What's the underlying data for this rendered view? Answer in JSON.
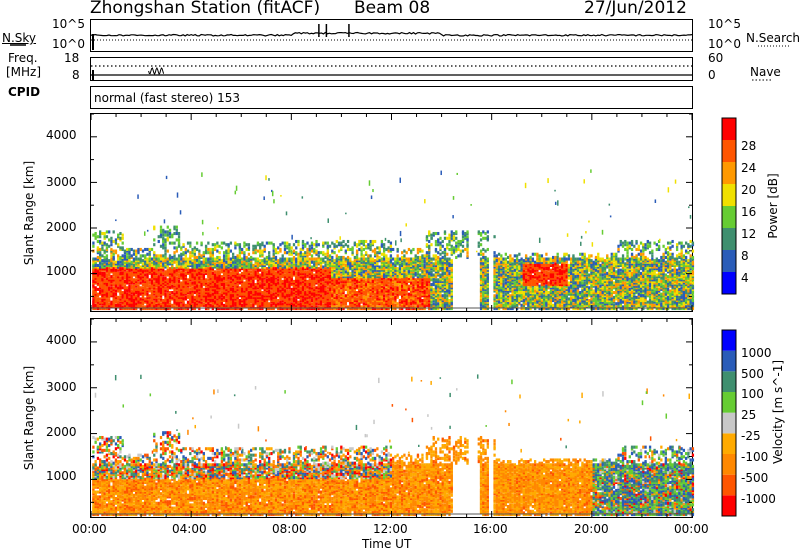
{
  "header": {
    "station": "Zhongshan Station (fitACF)",
    "beam": "Beam 08",
    "date": "27/Jun/2012"
  },
  "panels": {
    "nsky": {
      "label": "N.Sky",
      "ticks": [
        "10^5",
        "10^0"
      ],
      "right_ticks": [
        "10^5",
        "10^0"
      ],
      "right_label": "N.Search"
    },
    "freq": {
      "label1": "Freq.",
      "label2": "[MHz]",
      "ticks": [
        "18",
        "8"
      ],
      "right_ticks": [
        "60",
        "0"
      ],
      "right_label": "Nave"
    },
    "cpid": {
      "label": "CPID",
      "mode": "normal (fast stereo) 153"
    }
  },
  "colors": {
    "power": [
      "#0000ff",
      "#2a5cb8",
      "#3f8f6f",
      "#66cc33",
      "#f0e000",
      "#ff9900",
      "#ff5500",
      "#ff0000"
    ],
    "velocity": [
      "#ff0000",
      "#ff5500",
      "#ff8800",
      "#ffaa00",
      "#c8c8c8",
      "#66cc33",
      "#3f8f6f",
      "#2a5cb8",
      "#0000ff"
    ]
  },
  "chart_data": [
    {
      "type": "heatmap",
      "quantity": "Power",
      "ylabel": "Slant Range [km]",
      "xlabel": "",
      "ylim": [
        180,
        4500
      ],
      "xlim": [
        "00:00",
        "24:00"
      ],
      "y_ticks": [
        "1000",
        "2000",
        "3000",
        "4000"
      ],
      "colorbar": {
        "label": "Power [dB]",
        "ticks": [
          "4",
          "8",
          "12",
          "16",
          "20",
          "24",
          "28"
        ],
        "range": [
          0,
          32
        ]
      },
      "grid": false
    },
    {
      "type": "heatmap",
      "quantity": "Velocity",
      "ylabel": "Slant Range [km]",
      "xlabel": "Time UT",
      "ylim": [
        180,
        4500
      ],
      "xlim": [
        "00:00",
        "24:00"
      ],
      "x_ticks": [
        "00:00",
        "04:00",
        "08:00",
        "12:00",
        "16:00",
        "20:00",
        "00:00"
      ],
      "y_ticks": [
        "1000",
        "2000",
        "3000",
        "4000"
      ],
      "colorbar": {
        "label": "Velocity [m s^-1]",
        "ticks": [
          "1000",
          "500",
          "100",
          "25",
          "-25",
          "-100",
          "-500",
          "-1000"
        ]
      },
      "grid": false
    }
  ]
}
